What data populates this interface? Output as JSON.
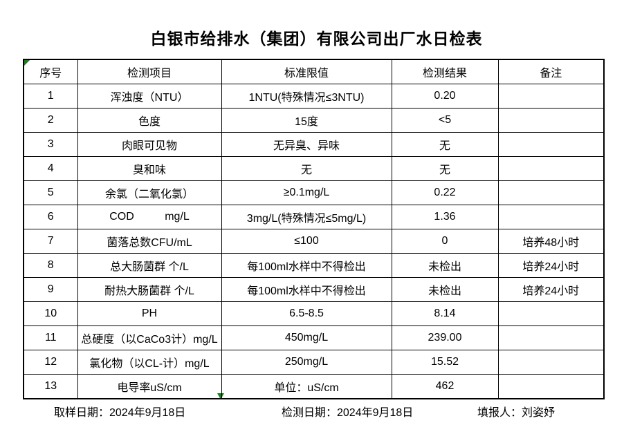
{
  "title": "白银市给排水（集团）有限公司出厂水日检表",
  "colors": {
    "flag_green": "#1e7e1e",
    "border_black": "#000000",
    "background": "#ffffff"
  },
  "icons": {
    "cell_corner_flag": "green-corner-triangle",
    "sheet_bottom_flag": "green-down-triangle"
  },
  "table": {
    "headers": [
      "序号",
      "检测项目",
      "标准限值",
      "检测结果",
      "备注"
    ],
    "rows": [
      {
        "no": "1",
        "item": "浑浊度（NTU）",
        "standard": "1NTU(特殊情况≤3NTU)",
        "result": "0.20",
        "note": ""
      },
      {
        "no": "2",
        "item": "色度",
        "standard": "15度",
        "result": "<5",
        "note": ""
      },
      {
        "no": "3",
        "item": "肉眼可见物",
        "standard": "无异臭、异味",
        "result": "无",
        "note": ""
      },
      {
        "no": "4",
        "item": "臭和味",
        "standard": "无",
        "result": "无",
        "note": ""
      },
      {
        "no": "5",
        "item": "余氯（二氧化氯）",
        "standard": "≥0.1mg/L",
        "result": "0.22",
        "note": ""
      },
      {
        "no": "6",
        "item": "COD          mg/L",
        "standard": "3mg/L(特殊情况≤5mg/L)",
        "result": "1.36",
        "note": ""
      },
      {
        "no": "7",
        "item": "菌落总数CFU/mL",
        "standard": "≤100",
        "result": "0",
        "note": "培养48小时"
      },
      {
        "no": "8",
        "item": "总大肠菌群 个/L",
        "standard": "每100ml水样中不得检出",
        "result": "未检出",
        "note": "培养24小时"
      },
      {
        "no": "9",
        "item": "耐热大肠菌群 个/L",
        "standard": "每100ml水样中不得检出",
        "result": "未检出",
        "note": "培养24小时"
      },
      {
        "no": "10",
        "item": "PH",
        "standard": "6.5-8.5",
        "result": "8.14",
        "note": ""
      },
      {
        "no": "11",
        "item": "总硬度（以CaCo3计）mg/L",
        "standard": "450mg/L",
        "result": "239.00",
        "note": ""
      },
      {
        "no": "12",
        "item": "氯化物（以CL-计）mg/L",
        "standard": "250mg/L",
        "result": "15.52",
        "note": ""
      },
      {
        "no": "13",
        "item": "电导率uS/cm",
        "standard": "单位：uS/cm",
        "result": "462",
        "note": ""
      }
    ]
  },
  "footer": {
    "sampling_date": "取样日期：2024年9月18日",
    "testing_date": "检测日期：2024年9月18日",
    "reporter": "填报人：刘姿妤"
  }
}
